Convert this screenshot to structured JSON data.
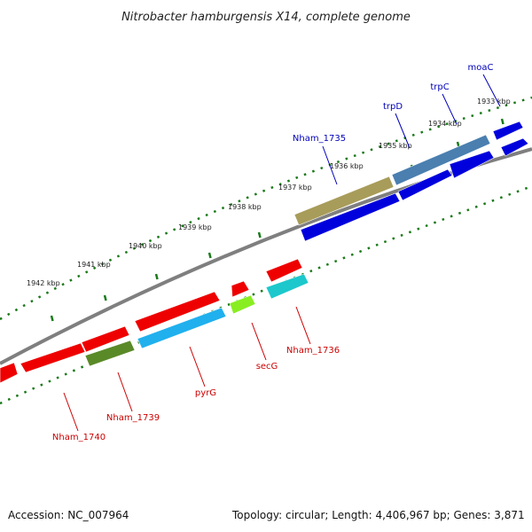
{
  "title": "Nitrobacter hamburgensis X14, complete genome",
  "accession_label": "Accession: NC_007964",
  "topology_label": "Topology: circular; Length: 4,406,967 bp; Genes: 3,871",
  "colors": {
    "tick_green": "#1a7a1a",
    "backbone": "#7f7f7f",
    "forward_label": "#0000bb",
    "reverse_label": "#cc0000",
    "blue_gene": "#0000dd",
    "steel_blue_gene": "#4a7fb0",
    "khaki_gene": "#a89c5a",
    "red_gene": "#ee0000",
    "cyan_gene": "#1cc8cc",
    "sky_gene": "#20b0ee",
    "olive_gene": "#5a8a28",
    "lime_gene": "#88ee22"
  },
  "ticks": [
    {
      "label": "1933 kbp"
    },
    {
      "label": "1934 kbp"
    },
    {
      "label": "1935 kbp"
    },
    {
      "label": "1936 kbp"
    },
    {
      "label": "1937 kbp"
    },
    {
      "label": "1938 kbp"
    },
    {
      "label": "1939 kbp"
    },
    {
      "label": "1940 kbp"
    },
    {
      "label": "1941 kbp"
    },
    {
      "label": "1942 kbp"
    }
  ],
  "gene_labels": [
    {
      "name": "moaC",
      "strand": "forward"
    },
    {
      "name": "trpC",
      "strand": "forward"
    },
    {
      "name": "trpD",
      "strand": "forward"
    },
    {
      "name": "Nham_1735",
      "strand": "forward"
    },
    {
      "name": "Nham_1736",
      "strand": "reverse"
    },
    {
      "name": "secG",
      "strand": "reverse"
    },
    {
      "name": "pyrG",
      "strand": "reverse"
    },
    {
      "name": "Nham_1739",
      "strand": "reverse"
    },
    {
      "name": "Nham_1740",
      "strand": "reverse"
    }
  ]
}
